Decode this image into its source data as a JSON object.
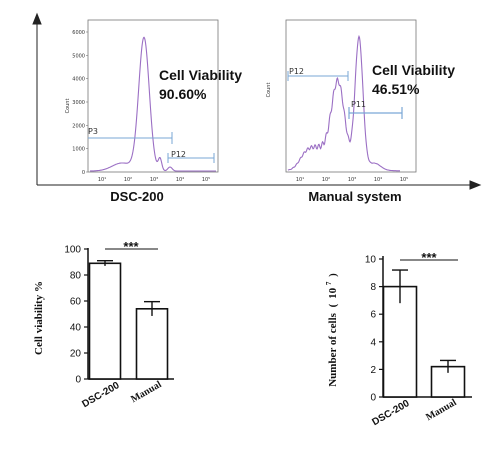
{
  "chart_data": [
    {
      "type": "line",
      "panel": "flow-histogram",
      "caption": "DSC-200",
      "ylabel": "Count",
      "yticks": [
        "0",
        "1000",
        "2000",
        "3000",
        "4000",
        "5000",
        "6000"
      ],
      "xticks": [
        "10¹",
        "10²",
        "10³",
        "10⁴",
        "10⁵"
      ],
      "annotation_line1": "Cell Viability",
      "annotation_line2": "90.60%",
      "gates": [
        {
          "name": "P3",
          "value": 90.6
        },
        {
          "name": "P12"
        }
      ],
      "color": "#9b6fc4"
    },
    {
      "type": "line",
      "panel": "flow-histogram",
      "caption": "Manual system",
      "ylabel": "Count",
      "yticks": [],
      "xticks": [
        "10¹",
        "10²",
        "10³",
        "10⁴",
        "10⁵"
      ],
      "annotation_line1": "Cell Viability",
      "annotation_line2": "46.51%",
      "gates": [
        {
          "name": "P12"
        },
        {
          "name": "P11",
          "value": 46.51
        }
      ],
      "color": "#9b6fc4"
    },
    {
      "type": "bar",
      "categories": [
        "DSC-200",
        "Manual"
      ],
      "values": [
        89,
        54
      ],
      "errors": [
        2,
        5.5
      ],
      "ylabel": "Cell viability %",
      "ylim": [
        0,
        100
      ],
      "yticks": [
        "0",
        "20",
        "40",
        "60",
        "80",
        "100"
      ],
      "significance": "***"
    },
    {
      "type": "bar",
      "categories": [
        "DSC-200",
        "Manual"
      ],
      "values": [
        8.0,
        2.2
      ],
      "errors": [
        1.2,
        0.45
      ],
      "ylabel_main": "Number of cells",
      "ylabel_paren_open": "(",
      "ylabel_base": "10",
      "ylabel_exp": "7",
      "ylabel_paren_close": ")",
      "ylim": [
        0,
        10
      ],
      "yticks": [
        "0",
        "2",
        "4",
        "6",
        "8",
        "10"
      ],
      "significance": "***"
    }
  ]
}
